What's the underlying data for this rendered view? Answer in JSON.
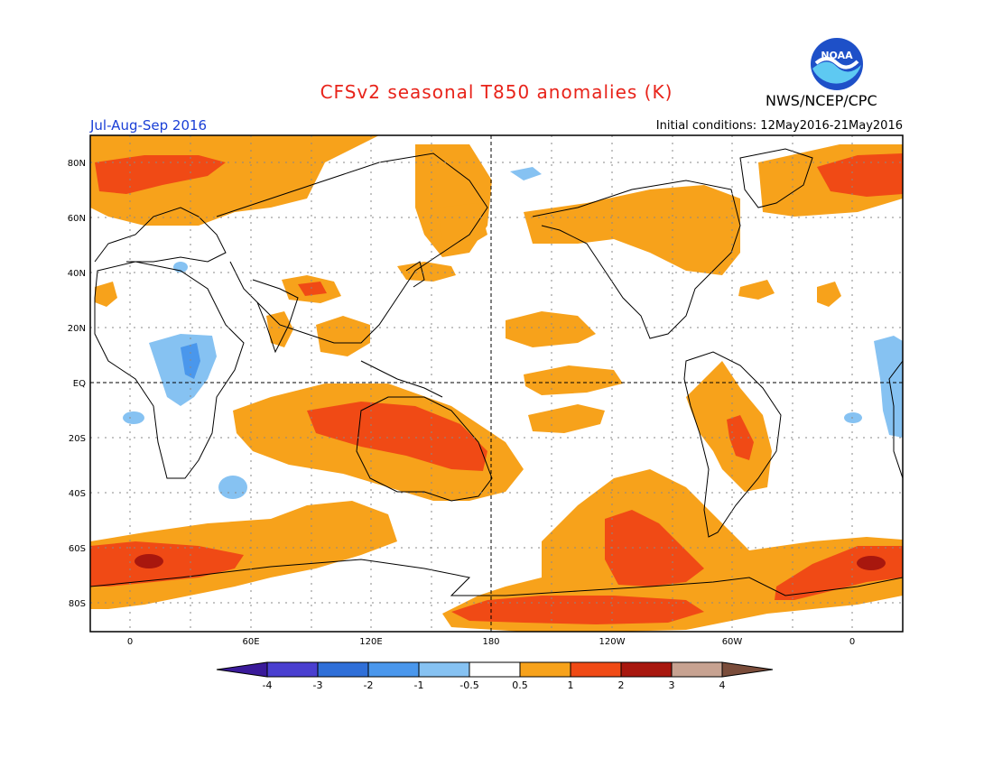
{
  "title": "CFSv2 seasonal T850 anomalies (K)",
  "org": "NWS/NCEP/CPC",
  "logo_text": "NOAA",
  "period": "Jul-Aug-Sep 2016",
  "initial_conditions": "Initial conditions: 12May2016-21May2016",
  "lat_labels": [
    "80N",
    "60N",
    "40N",
    "20N",
    "EQ",
    "20S",
    "40S",
    "60S",
    "80S"
  ],
  "lon_labels": [
    "0",
    "60E",
    "120E",
    "180",
    "120W",
    "60W",
    "0"
  ],
  "colorbar": {
    "labels": [
      "-4",
      "-3",
      "-2",
      "-1",
      "-0.5",
      "0.5",
      "1",
      "2",
      "3",
      "4"
    ],
    "colors": [
      "#3a1a9a",
      "#4a3fd0",
      "#2f6fd8",
      "#4a97ec",
      "#86c2f2",
      "#ffffff",
      "#f7a21b",
      "#f04a15",
      "#a8170e",
      "#c7a291",
      "#7a4c3a"
    ]
  },
  "colors": {
    "warm1": "#f7a21b",
    "warm2": "#f04a15",
    "warm3": "#a8170e",
    "cool1": "#86c2f2",
    "cool2": "#4a97ec"
  }
}
